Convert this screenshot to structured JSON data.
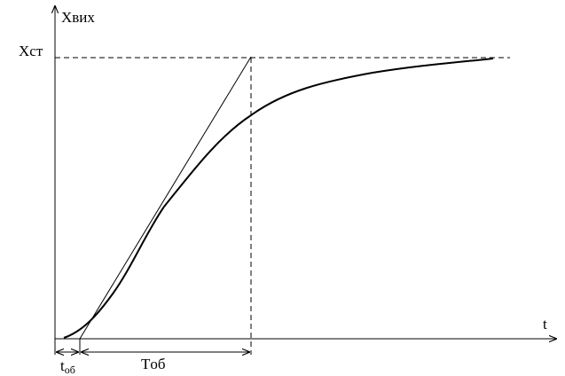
{
  "labels": {
    "y_axis": "Xвих",
    "x_axis": "t",
    "steady_state": "Xст",
    "delay_main": "t",
    "delay_sub": "об",
    "time_constant": "Tоб"
  },
  "colors": {
    "stroke": "#000000",
    "background": "#ffffff"
  }
}
